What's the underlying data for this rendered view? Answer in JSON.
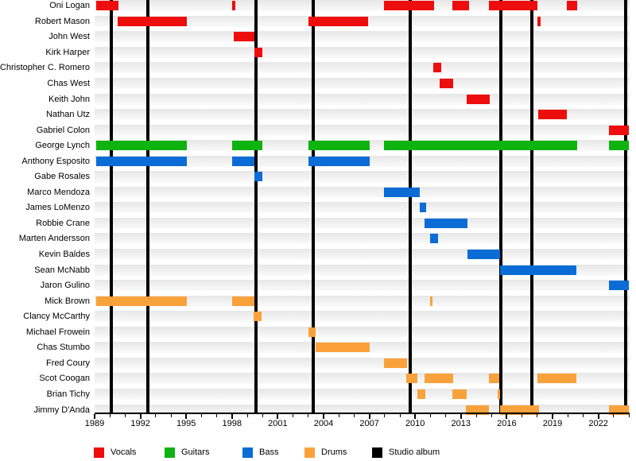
{
  "chart_data": {
    "type": "gantt",
    "title": "",
    "x_axis": {
      "min": 1989,
      "max": 2024.05,
      "minor_tick_interval": 1,
      "label_interval": 3,
      "tick_labels": [
        "1989",
        "1992",
        "1995",
        "1998",
        "2001",
        "2004",
        "2007",
        "2010",
        "2013",
        "2016",
        "2019",
        "2022"
      ],
      "grid": false,
      "label_side": "bottom"
    },
    "colors": {
      "Vocals": "#ee0d0d",
      "Guitars": "#0fb30f",
      "Bass": "#0b6cd6",
      "Drums": "#f9a23b",
      "Studio album": "#000000",
      "row_stripe": "#ececec"
    },
    "legend": [
      {
        "label": "Vocals",
        "color": "#ee0d0d"
      },
      {
        "label": "Guitars",
        "color": "#0fb30f"
      },
      {
        "label": "Bass",
        "color": "#0b6cd6"
      },
      {
        "label": "Drums",
        "color": "#f9a23b"
      },
      {
        "label": "Studio album",
        "color": "#000000"
      }
    ],
    "members": [
      {
        "name": "Oni Logan",
        "role": "Vocals",
        "periods": [
          [
            1989.1,
            1990.55
          ],
          [
            1998.0,
            1998.2
          ],
          [
            2007.95,
            2011.25
          ],
          [
            2012.45,
            2013.55
          ],
          [
            2014.85,
            2018.0
          ],
          [
            2019.95,
            2020.6
          ]
        ]
      },
      {
        "name": "Robert Mason",
        "role": "Vocals",
        "periods": [
          [
            1990.5,
            1995.05
          ],
          [
            2003.0,
            2006.9
          ],
          [
            2018.0,
            2018.2
          ]
        ]
      },
      {
        "name": "John West",
        "role": "Vocals",
        "periods": [
          [
            1998.1,
            1999.45
          ]
        ]
      },
      {
        "name": "Kirk Harper",
        "role": "Vocals",
        "periods": [
          [
            1999.45,
            2000.0
          ]
        ]
      },
      {
        "name": "Christopher C. Romero",
        "role": "Vocals",
        "periods": [
          [
            2011.2,
            2011.7
          ]
        ]
      },
      {
        "name": "Chas West",
        "role": "Vocals",
        "periods": [
          [
            2011.6,
            2012.5
          ]
        ]
      },
      {
        "name": "Keith John",
        "role": "Vocals",
        "periods": [
          [
            2013.35,
            2014.9
          ]
        ]
      },
      {
        "name": "Nathan Utz",
        "role": "Vocals",
        "periods": [
          [
            2018.05,
            2019.95
          ]
        ]
      },
      {
        "name": "Gabriel Colon",
        "role": "Vocals",
        "periods": [
          [
            2022.7,
            2024.0
          ]
        ]
      },
      {
        "name": "George Lynch",
        "role": "Guitars",
        "periods": [
          [
            1989.1,
            1995.05
          ],
          [
            1998.0,
            2000.0
          ],
          [
            2003.0,
            2007.0
          ],
          [
            2007.95,
            2020.6
          ],
          [
            2022.7,
            2024.0
          ]
        ]
      },
      {
        "name": "Anthony Esposito",
        "role": "Bass",
        "periods": [
          [
            1989.1,
            1995.05
          ],
          [
            1998.0,
            1999.45
          ],
          [
            2003.0,
            2007.0
          ]
        ]
      },
      {
        "name": "Gabe Rosales",
        "role": "Bass",
        "periods": [
          [
            1999.45,
            2000.0
          ]
        ]
      },
      {
        "name": "Marco Mendoza",
        "role": "Bass",
        "periods": [
          [
            2007.95,
            2010.3
          ]
        ]
      },
      {
        "name": "James LoMenzo",
        "role": "Bass",
        "periods": [
          [
            2010.3,
            2010.7
          ]
        ]
      },
      {
        "name": "Robbie Crane",
        "role": "Bass",
        "periods": [
          [
            2010.6,
            2013.45
          ]
        ]
      },
      {
        "name": "Marten Andersson",
        "role": "Bass",
        "periods": [
          [
            2011.0,
            2011.5
          ]
        ]
      },
      {
        "name": "Kevin Baldes",
        "role": "Bass",
        "periods": [
          [
            2013.4,
            2015.55
          ]
        ]
      },
      {
        "name": "Sean McNabb",
        "role": "Bass",
        "periods": [
          [
            2015.55,
            2020.55
          ]
        ]
      },
      {
        "name": "Jaron Gulino",
        "role": "Bass",
        "periods": [
          [
            2022.7,
            2024.0
          ]
        ]
      },
      {
        "name": "Mick Brown",
        "role": "Drums",
        "periods": [
          [
            1989.1,
            1995.05
          ],
          [
            1998.0,
            1999.45
          ],
          [
            2011.0,
            2011.15
          ]
        ]
      },
      {
        "name": "Clancy McCarthy",
        "role": "Drums",
        "periods": [
          [
            1999.4,
            1999.95
          ]
        ]
      },
      {
        "name": "Michael Frowein",
        "role": "Drums",
        "periods": [
          [
            2003.0,
            2003.5
          ]
        ]
      },
      {
        "name": "Chas Stumbo",
        "role": "Drums",
        "periods": [
          [
            2003.5,
            2007.0
          ]
        ]
      },
      {
        "name": "Fred Coury",
        "role": "Drums",
        "periods": [
          [
            2007.95,
            2009.45
          ]
        ]
      },
      {
        "name": "Scot Coogan",
        "role": "Drums",
        "periods": [
          [
            2009.4,
            2010.15
          ],
          [
            2010.6,
            2012.5
          ],
          [
            2014.85,
            2015.5
          ],
          [
            2018.0,
            2020.55
          ]
        ]
      },
      {
        "name": "Brian Tichy",
        "role": "Drums",
        "periods": [
          [
            2010.15,
            2010.65
          ],
          [
            2012.45,
            2013.4
          ],
          [
            2015.4,
            2015.55
          ]
        ]
      },
      {
        "name": "Jimmy D'Anda",
        "role": "Drums",
        "periods": [
          [
            2013.3,
            2014.85
          ],
          [
            2015.55,
            2018.1
          ],
          [
            2022.7,
            2024.0
          ]
        ]
      }
    ],
    "albums": {
      "legend_label": "Studio album",
      "years": [
        1990.1,
        1992.5,
        1999.55,
        2003.3,
        2009.7,
        2015.6,
        2017.65,
        2023.8
      ]
    }
  }
}
